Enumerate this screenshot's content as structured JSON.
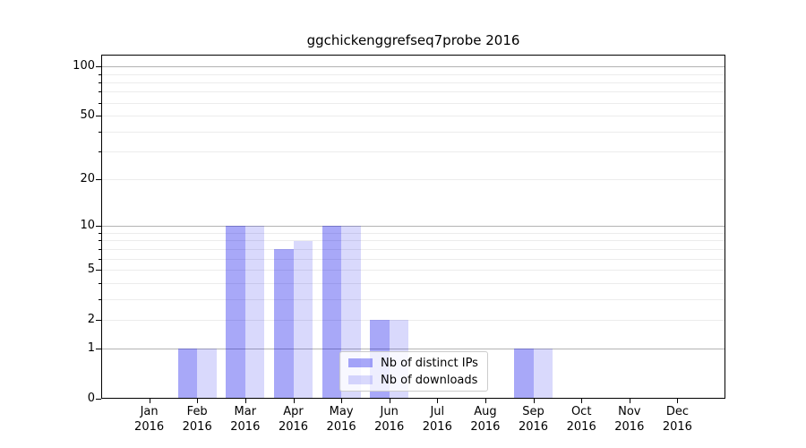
{
  "chart_data": {
    "type": "bar",
    "title": "ggchickenggrefseq7probe 2016",
    "categories": [
      "Jan",
      "Feb",
      "Mar",
      "Apr",
      "May",
      "Jun",
      "Jul",
      "Aug",
      "Sep",
      "Oct",
      "Nov",
      "Dec"
    ],
    "x_year_label": "2016",
    "series": [
      {
        "name": "Nb of distinct IPs",
        "color": "rgba(0,0,235,0.34)",
        "values": [
          0,
          1,
          10,
          7,
          10,
          2,
          0,
          0,
          1,
          0,
          0,
          0
        ]
      },
      {
        "name": "Nb of downloads",
        "color": "rgba(0,0,235,0.15)",
        "values": [
          0,
          1,
          10,
          8,
          10,
          2,
          0,
          0,
          1,
          0,
          0,
          0
        ]
      }
    ],
    "y_axis": {
      "scale": "log1p",
      "ylim": [
        0,
        118
      ],
      "tick_values": [
        0,
        1,
        2,
        5,
        10,
        20,
        50,
        100
      ],
      "tick_labels": [
        "0",
        "1",
        "2",
        "5",
        "10",
        "20",
        "50",
        "100"
      ],
      "major_gridlines": [
        1,
        10,
        100
      ],
      "minor_gridlines": [
        2,
        3,
        4,
        5,
        6,
        7,
        8,
        9,
        20,
        30,
        40,
        50,
        60,
        70,
        80,
        90
      ]
    },
    "grid": true,
    "legend_position": "lower center-right inside plot"
  },
  "colors": {
    "bar_distinct_ips": "#aaaaf8",
    "bar_downloads": "#d9d9fc",
    "major_grid": "#b3b3b3",
    "minor_grid": "#ececec",
    "axis": "#000000",
    "background": "#ffffff",
    "legend_border": "#cccccc"
  }
}
